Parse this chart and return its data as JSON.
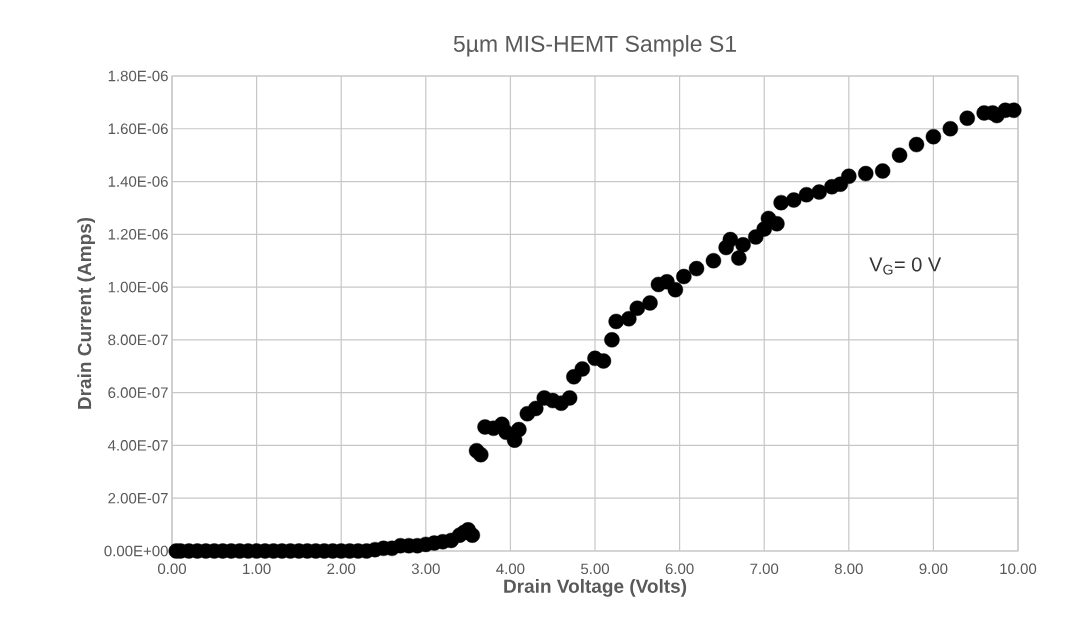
{
  "chart_data": {
    "type": "scatter",
    "title": "5µm MIS-HEMT Sample S1",
    "xlabel": "Drain Voltage (Volts)",
    "ylabel": "Drain Current (Amps)",
    "annotations": [
      "V$_{G}$= 0 V"
    ],
    "x": [
      0.05,
      0.1,
      0.2,
      0.3,
      0.4,
      0.5,
      0.6,
      0.7,
      0.8,
      0.9,
      1.0,
      1.1,
      1.2,
      1.3,
      1.4,
      1.5,
      1.6,
      1.7,
      1.8,
      1.9,
      2.0,
      2.1,
      2.2,
      2.3,
      2.4,
      2.5,
      2.6,
      2.7,
      2.8,
      2.9,
      3.0,
      3.1,
      3.2,
      3.3,
      3.4,
      3.45,
      3.5,
      3.55,
      3.6,
      3.65,
      3.7,
      3.8,
      3.9,
      3.95,
      4.05,
      4.1,
      4.2,
      4.3,
      4.4,
      4.5,
      4.6,
      4.7,
      4.75,
      4.85,
      5.0,
      5.1,
      5.2,
      5.25,
      5.4,
      5.5,
      5.65,
      5.75,
      5.85,
      5.95,
      6.05,
      6.2,
      6.4,
      6.55,
      6.6,
      6.7,
      6.75,
      6.9,
      7.0,
      7.05,
      7.15,
      7.2,
      7.35,
      7.5,
      7.65,
      7.8,
      7.9,
      8.0,
      8.2,
      8.4,
      8.6,
      8.8,
      9.0,
      9.2,
      9.4,
      9.6,
      9.7,
      9.75,
      9.85,
      9.95
    ],
    "values": [
      0,
      0,
      0,
      0,
      0,
      0,
      0,
      0,
      0,
      0,
      0,
      0,
      0,
      0,
      0,
      0,
      0,
      0,
      0,
      0,
      0,
      0,
      0,
      0,
      5e-09,
      1e-08,
      1e-08,
      2e-08,
      2e-08,
      2e-08,
      2.5e-08,
      3e-08,
      3.5e-08,
      4e-08,
      6e-08,
      7e-08,
      8e-08,
      6e-08,
      3.8e-07,
      3.65e-07,
      4.7e-07,
      4.65e-07,
      4.8e-07,
      4.5e-07,
      4.2e-07,
      4.6e-07,
      5.2e-07,
      5.4e-07,
      5.8e-07,
      5.7e-07,
      5.6e-07,
      5.8e-07,
      6.6e-07,
      6.9e-07,
      7.3e-07,
      7.2e-07,
      8e-07,
      8.7e-07,
      8.8e-07,
      9.2e-07,
      9.4e-07,
      1.01e-06,
      1.02e-06,
      9.9e-07,
      1.04e-06,
      1.07e-06,
      1.1e-06,
      1.15e-06,
      1.18e-06,
      1.11e-06,
      1.16e-06,
      1.19e-06,
      1.22e-06,
      1.26e-06,
      1.24e-06,
      1.32e-06,
      1.33e-06,
      1.35e-06,
      1.36e-06,
      1.38e-06,
      1.39e-06,
      1.42e-06,
      1.43e-06,
      1.44e-06,
      1.5e-06,
      1.54e-06,
      1.57e-06,
      1.6e-06,
      1.64e-06,
      1.66e-06,
      1.66e-06,
      1.65e-06,
      1.67e-06,
      1.67e-06
    ],
    "color": "#000000",
    "marker": "circle",
    "grid": true,
    "xlim": [
      0,
      10
    ],
    "ylim": [
      0,
      1.8e-06
    ],
    "xticks": [
      {
        "value": 0,
        "label": "0.00"
      },
      {
        "value": 1,
        "label": "1.00"
      },
      {
        "value": 2,
        "label": "2.00"
      },
      {
        "value": 3,
        "label": "3.00"
      },
      {
        "value": 4,
        "label": "4.00"
      },
      {
        "value": 5,
        "label": "5.00"
      },
      {
        "value": 6,
        "label": "6.00"
      },
      {
        "value": 7,
        "label": "7.00"
      },
      {
        "value": 8,
        "label": "8.00"
      },
      {
        "value": 9,
        "label": "9.00"
      },
      {
        "value": 10,
        "label": "10.00"
      }
    ],
    "yticks": [
      {
        "value": 0,
        "label": "0.00E+00"
      },
      {
        "value": 2e-07,
        "label": "2.00E-07"
      },
      {
        "value": 4e-07,
        "label": "4.00E-07"
      },
      {
        "value": 6e-07,
        "label": "6.00E-07"
      },
      {
        "value": 8e-07,
        "label": "8.00E-07"
      },
      {
        "value": 1e-06,
        "label": "1.00E-06"
      },
      {
        "value": 1.2e-06,
        "label": "1.20E-06"
      },
      {
        "value": 1.4e-06,
        "label": "1.40E-06"
      },
      {
        "value": 1.6e-06,
        "label": "1.60E-06"
      },
      {
        "value": 1.8e-06,
        "label": "1.80E-06"
      }
    ]
  }
}
